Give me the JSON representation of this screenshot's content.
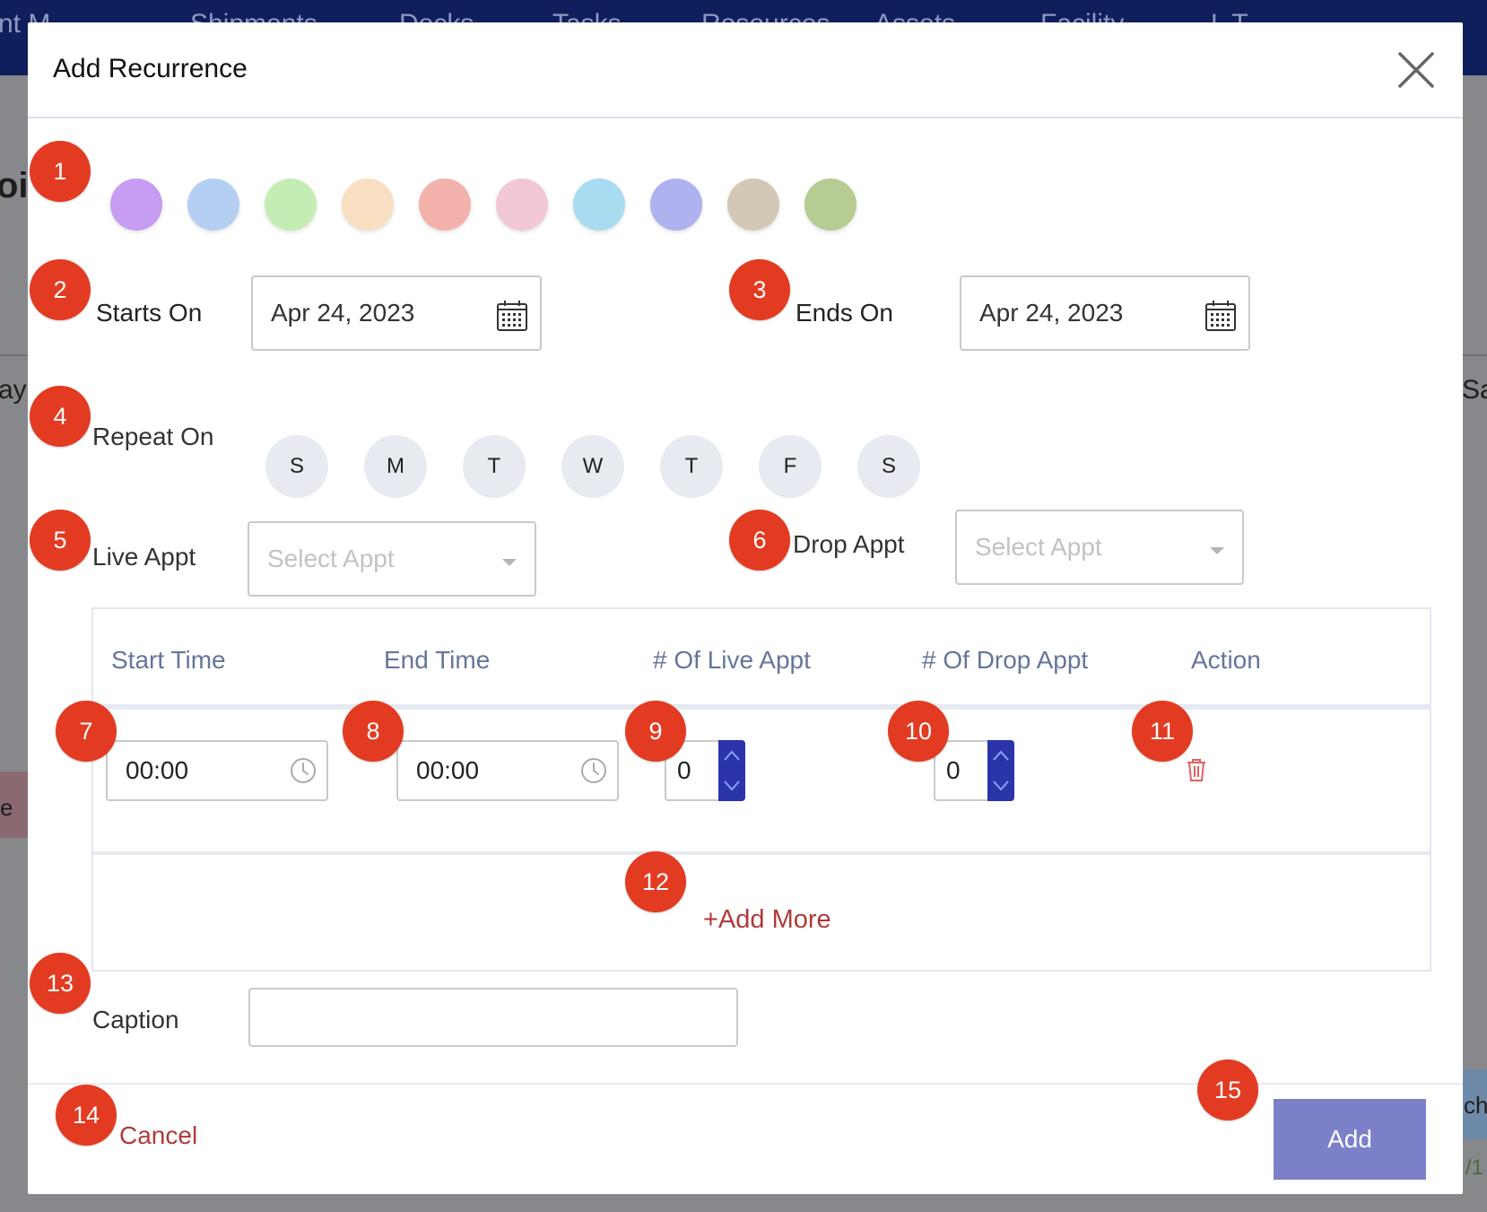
{
  "background": {
    "nav_items": [
      "nt M",
      "Shipments",
      "Docks",
      "Tasks",
      "Resources",
      "Assets",
      "Facility",
      "L T"
    ],
    "left_text": "oir",
    "left_day": "ay",
    "right_day": "Sa",
    "left_chip": "e",
    "right_chip": "che",
    "right_small": "/1"
  },
  "modal": {
    "title": "Add Recurrence",
    "colors": [
      "#c79cf3",
      "#b5cff3",
      "#c4edb3",
      "#f9dfc1",
      "#f3b1ac",
      "#f1c8d3",
      "#a9dcf0",
      "#aeb2ee",
      "#d3c7b5",
      "#b7cc93"
    ],
    "starts_on": {
      "label": "Starts On",
      "value": "Apr 24, 2023"
    },
    "ends_on": {
      "label": "Ends On",
      "value": "Apr 24, 2023"
    },
    "repeat_on": {
      "label": "Repeat On",
      "days": [
        "S",
        "M",
        "T",
        "W",
        "T",
        "F",
        "S"
      ]
    },
    "live_appt": {
      "label": "Live Appt",
      "placeholder": "Select Appt"
    },
    "drop_appt": {
      "label": "Drop Appt",
      "placeholder": "Select Appt"
    },
    "table": {
      "headers": [
        "Start Time",
        "End Time",
        "# Of Live Appt",
        "# Of Drop Appt",
        "Action"
      ],
      "row": {
        "start_time": "00:00",
        "end_time": "00:00",
        "live_count": "0",
        "drop_count": "0"
      },
      "add_more": "+Add More"
    },
    "caption": {
      "label": "Caption",
      "value": ""
    },
    "cancel_label": "Cancel",
    "add_label": "Add"
  },
  "markers": [
    "1",
    "2",
    "3",
    "4",
    "5",
    "6",
    "7",
    "8",
    "9",
    "10",
    "11",
    "12",
    "13",
    "14",
    "15"
  ]
}
